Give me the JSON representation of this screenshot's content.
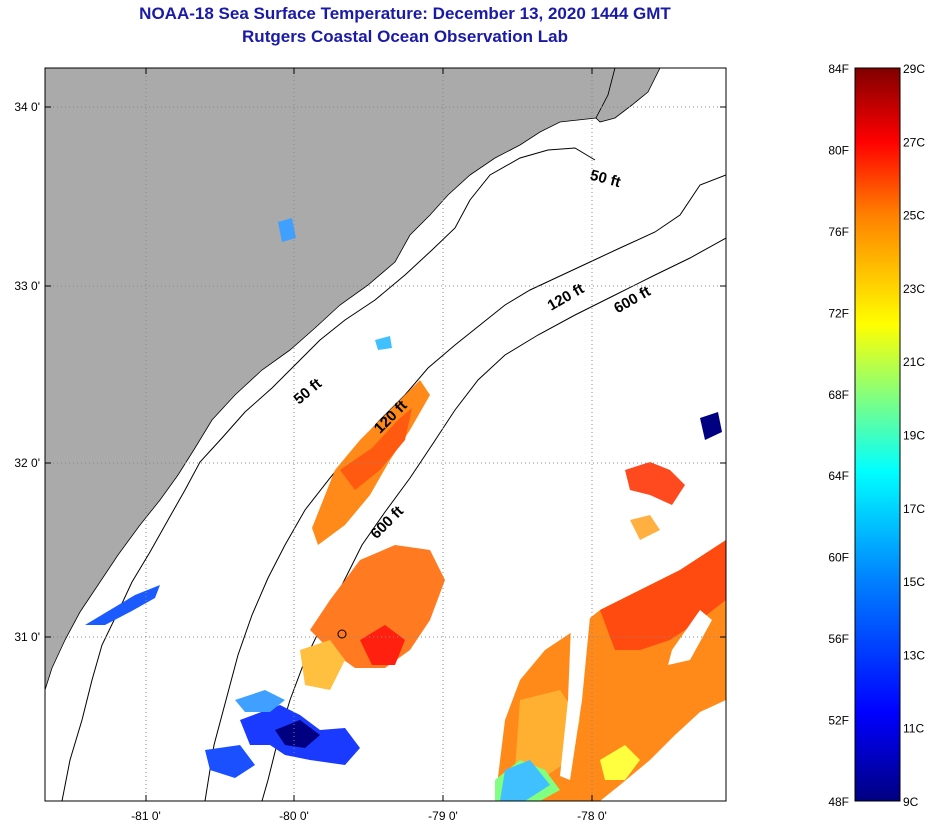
{
  "header": {
    "title": "NOAA-18 Sea Surface Temperature:  December 13, 2020 1444 GMT",
    "subtitle": "Rutgers Coastal Ocean Observation Lab"
  },
  "map": {
    "lon_ticks": [
      "-81 0'",
      "-80 0'",
      "-79 0'",
      "-78 0'"
    ],
    "lat_ticks": [
      "34 0'",
      "33 0'",
      "32 0'",
      "31 0'"
    ],
    "depth_labels": [
      "50 ft",
      "120 ft",
      "600 ft",
      "50 ft",
      "120 ft",
      "600 ft"
    ],
    "land_color": "#aaaaaa",
    "ocean_color": "#ffffff"
  },
  "colorbar": {
    "f_labels": [
      "84F",
      "80F",
      "76F",
      "72F",
      "68F",
      "64F",
      "60F",
      "56F",
      "52F",
      "48F"
    ],
    "c_labels": [
      "29C",
      "27C",
      "25C",
      "23C",
      "21C",
      "19C",
      "17C",
      "15C",
      "13C",
      "11C",
      "9C"
    ],
    "colors": [
      "#800000",
      "#ff0000",
      "#ff8000",
      "#ffff00",
      "#80ff80",
      "#00ffff",
      "#0080ff",
      "#0000ff",
      "#000080"
    ]
  }
}
